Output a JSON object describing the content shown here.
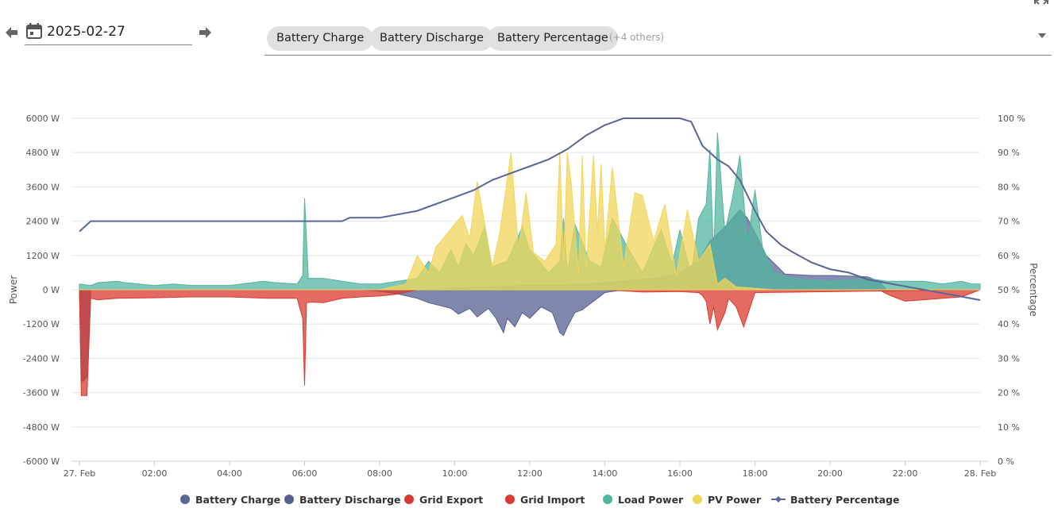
{
  "toolbar": {
    "prev_icon": "arrow-left-icon",
    "next_icon": "arrow-right-icon",
    "calendar_icon": "calendar-icon",
    "date_value": "2025-02-27",
    "chips": [
      "Battery Charge",
      "Battery Discharge",
      "Battery Percentage"
    ],
    "others_label": "(+4 others)",
    "caret_icon": "chevron-down-icon",
    "fullscreen_icon": "fullscreen-icon"
  },
  "chart_data": {
    "type": "area",
    "title": "",
    "xlabel": "",
    "ylabel": "Power",
    "y2label": "Percentage",
    "ylim": [
      -6000,
      6000
    ],
    "y2lim": [
      0,
      100
    ],
    "yticks": [
      "6000 W",
      "4800 W",
      "3600 W",
      "2400 W",
      "1200 W",
      "0 W",
      "-1200 W",
      "-2400 W",
      "-3600 W",
      "-4800 W",
      "-6000 W"
    ],
    "y2ticks": [
      "100 %",
      "90 %",
      "80 %",
      "70 %",
      "60 %",
      "50 %",
      "40 %",
      "30 %",
      "20 %",
      "10 %",
      "0 %"
    ],
    "xticks": [
      "27. Feb",
      "02:00",
      "04:00",
      "06:00",
      "08:00",
      "10:00",
      "12:00",
      "14:00",
      "16:00",
      "18:00",
      "20:00",
      "22:00",
      "28. Feb"
    ],
    "grid": true,
    "legend_position": "bottom",
    "x_unit": "hours",
    "series": [
      {
        "name": "Battery Charge",
        "axis": "power",
        "color": "#5b6698",
        "mode": "area",
        "x": [
          0,
          9.2,
          9.6,
          10.5,
          11.2,
          12.0,
          12.8,
          13.5,
          13.9,
          14.5,
          15.5,
          16.0,
          16.5,
          16.8,
          17.2,
          17.6,
          17.8,
          18.0,
          18.3,
          18.8,
          19.5,
          20.0,
          20.5,
          21.0,
          21.3,
          21.5,
          24
        ],
        "y": [
          0,
          0,
          40,
          80,
          120,
          160,
          160,
          200,
          240,
          300,
          420,
          600,
          1000,
          1700,
          2200,
          2800,
          2500,
          2000,
          1200,
          550,
          500,
          500,
          480,
          450,
          300,
          0,
          0
        ]
      },
      {
        "name": "Battery Discharge",
        "axis": "power",
        "color": "#565f91",
        "mode": "area",
        "x": [
          0,
          0.05,
          0.1,
          0.22,
          0.3,
          7.5,
          8.0,
          8.5,
          9.0,
          9.3,
          9.6,
          9.9,
          10.1,
          10.4,
          10.6,
          10.9,
          11.1,
          11.3,
          11.4,
          11.6,
          11.8,
          12.0,
          12.3,
          12.6,
          12.8,
          12.9,
          13.0,
          13.2,
          13.4,
          13.6,
          13.8,
          14.0,
          14.5,
          24
        ],
        "y": [
          0,
          -3200,
          -3200,
          -3000,
          0,
          0,
          -50,
          -150,
          -300,
          -450,
          -550,
          -650,
          -850,
          -650,
          -950,
          -650,
          -1000,
          -1500,
          -1000,
          -1300,
          -800,
          -1000,
          -600,
          -800,
          -1500,
          -1600,
          -1300,
          -800,
          -700,
          -500,
          -300,
          -100,
          0,
          0
        ]
      },
      {
        "name": "Grid Export",
        "axis": "power",
        "color": "#d93a2f",
        "mode": "area",
        "x": [
          0,
          14.0,
          15.0,
          16.0,
          16.5,
          16.6,
          16.7,
          16.8,
          16.9,
          17.0,
          17.2,
          17.3,
          17.5,
          17.7,
          18.0,
          24
        ],
        "y": [
          0,
          0,
          -80,
          -60,
          -100,
          -200,
          -400,
          -1200,
          -600,
          -1400,
          -800,
          -300,
          -600,
          -1300,
          -100,
          0
        ]
      },
      {
        "name": "Grid Import",
        "axis": "power",
        "color": "#d93a2f",
        "mode": "area",
        "x": [
          0,
          0.05,
          0.2,
          0.3,
          0.5,
          1.0,
          2.0,
          3.0,
          4.0,
          5.0,
          5.8,
          5.95,
          6.0,
          6.05,
          6.2,
          6.5,
          7.0,
          7.5,
          8.0,
          8.5,
          9.0,
          21.3,
          21.6,
          22.0,
          22.5,
          23.0,
          23.5,
          24
        ],
        "y": [
          0,
          -3700,
          -3700,
          -300,
          -350,
          -300,
          -280,
          -250,
          -250,
          -300,
          -300,
          -1000,
          -3350,
          -450,
          -430,
          -450,
          -300,
          -250,
          -220,
          -150,
          0,
          0,
          -200,
          -400,
          -350,
          -300,
          -250,
          0
        ]
      },
      {
        "name": "Load Power",
        "axis": "power",
        "color": "#52b59e",
        "mode": "area",
        "x": [
          0,
          0.3,
          0.5,
          1.0,
          1.2,
          2.0,
          2.5,
          3.0,
          4.0,
          4.9,
          5.2,
          5.8,
          5.95,
          6.0,
          6.1,
          6.5,
          7.0,
          7.5,
          8.0,
          8.5,
          9.0,
          9.3,
          9.6,
          9.9,
          10.1,
          10.3,
          10.5,
          10.8,
          11.0,
          11.4,
          11.8,
          12.0,
          12.5,
          12.8,
          12.9,
          13.0,
          13.2,
          13.6,
          13.9,
          14.2,
          14.6,
          15.0,
          15.5,
          15.8,
          16.0,
          16.3,
          16.5,
          16.7,
          16.8,
          16.9,
          17.0,
          17.2,
          17.4,
          17.6,
          17.8,
          18.0,
          18.2,
          18.5,
          19.0,
          20.0,
          21.0,
          21.5,
          22.0,
          22.5,
          23.0,
          23.5,
          23.8,
          24
        ],
        "y": [
          200,
          150,
          250,
          300,
          250,
          150,
          200,
          150,
          150,
          300,
          250,
          200,
          500,
          3200,
          400,
          400,
          300,
          200,
          200,
          300,
          400,
          1000,
          600,
          1400,
          800,
          1600,
          1200,
          2200,
          800,
          1000,
          2200,
          1400,
          600,
          1000,
          2500,
          600,
          2300,
          1000,
          800,
          2500,
          1500,
          600,
          2100,
          900,
          2100,
          500,
          2500,
          3000,
          4900,
          1000,
          5500,
          2000,
          3200,
          4700,
          1600,
          3500,
          1500,
          600,
          400,
          300,
          400,
          300,
          300,
          300,
          200,
          300,
          200,
          200
        ]
      },
      {
        "name": "PV Power",
        "axis": "power",
        "color": "#f0d65a",
        "mode": "area",
        "x": [
          0,
          8.0,
          8.7,
          9.0,
          9.3,
          9.5,
          9.7,
          10.0,
          10.2,
          10.4,
          10.6,
          11.0,
          11.2,
          11.5,
          11.7,
          11.9,
          12.1,
          12.4,
          12.7,
          12.8,
          12.9,
          13.0,
          13.1,
          13.3,
          13.4,
          13.5,
          13.7,
          13.8,
          13.9,
          14.0,
          14.2,
          14.5,
          14.8,
          15.0,
          15.3,
          15.6,
          15.9,
          16.2,
          16.5,
          16.8,
          17.0,
          17.2,
          17.5,
          18.0,
          18.5,
          24
        ],
        "y": [
          0,
          0,
          200,
          1200,
          600,
          1500,
          1800,
          2300,
          2600,
          1800,
          3800,
          800,
          2000,
          4800,
          1400,
          3400,
          1300,
          1000,
          1600,
          4800,
          900,
          4800,
          3800,
          600,
          4700,
          700,
          4700,
          2000,
          4400,
          1400,
          4300,
          800,
          3400,
          3300,
          1700,
          3000,
          500,
          2800,
          1000,
          1600,
          200,
          400,
          100,
          50,
          0,
          0
        ]
      },
      {
        "name": "Battery Percentage",
        "axis": "percent",
        "color": "#5b6698",
        "mode": "line",
        "x": [
          0,
          0.3,
          5.0,
          6.0,
          7.0,
          7.2,
          7.5,
          8.0,
          8.5,
          9.0,
          9.5,
          10.0,
          10.5,
          11.0,
          11.5,
          12.0,
          12.5,
          13.0,
          13.5,
          14.0,
          14.5,
          15.0,
          15.5,
          16.0,
          16.3,
          16.6,
          17.0,
          17.3,
          17.6,
          18.0,
          18.3,
          18.7,
          19.0,
          19.5,
          20.0,
          20.5,
          21.0,
          21.5,
          22.0,
          22.5,
          23.0,
          23.5,
          24
        ],
        "y": [
          67,
          70,
          70,
          70,
          70,
          71,
          71,
          71,
          72,
          73,
          75,
          77,
          79,
          82,
          84,
          86,
          88,
          91,
          95,
          98,
          100,
          100,
          100,
          100,
          99,
          92,
          88,
          86,
          82,
          73,
          67,
          63,
          61,
          58,
          56,
          55,
          53,
          52,
          51,
          50,
          49,
          48,
          47
        ]
      }
    ],
    "legend": [
      {
        "label": "Battery Charge",
        "color": "#5b6698",
        "marker": "circle"
      },
      {
        "label": "Battery Discharge",
        "color": "#565f91",
        "marker": "circle"
      },
      {
        "label": "Grid Export",
        "color": "#d93a2f",
        "marker": "circle"
      },
      {
        "label": "Grid Import",
        "color": "#d93a2f",
        "marker": "circle"
      },
      {
        "label": "Load Power",
        "color": "#52b59e",
        "marker": "circle"
      },
      {
        "label": "PV Power",
        "color": "#f0d65a",
        "marker": "circle"
      },
      {
        "label": "Battery Percentage",
        "color": "#5b6698",
        "marker": "line-diamond"
      }
    ]
  }
}
